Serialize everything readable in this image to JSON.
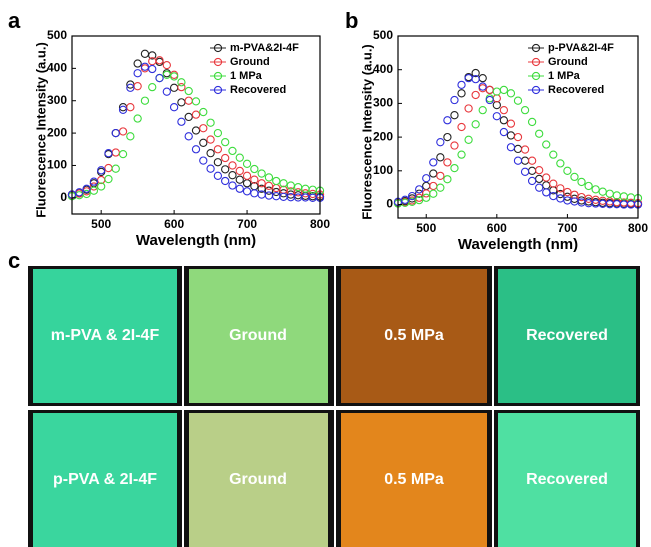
{
  "chart_data": [
    {
      "type": "scatter",
      "panel_label": "a",
      "xlabel": "Wavelength (nm)",
      "ylabel": "Fluorescence Intensity (a.u.)",
      "x": [
        460,
        470,
        480,
        490,
        500,
        510,
        520,
        530,
        540,
        550,
        560,
        570,
        580,
        590,
        600,
        610,
        620,
        630,
        640,
        650,
        660,
        670,
        680,
        690,
        700,
        710,
        720,
        730,
        740,
        750,
        760,
        770,
        780,
        790,
        800
      ],
      "xlim": [
        460,
        800
      ],
      "xticks": [
        500,
        600,
        700,
        800
      ],
      "ylim": [
        -50,
        500
      ],
      "yticks": [
        0,
        100,
        200,
        300,
        400,
        500
      ],
      "legend": "upper right",
      "series": [
        {
          "name": "m-PVA&2I-4F",
          "color": "#222222",
          "values": [
            10,
            16,
            25,
            45,
            80,
            135,
            200,
            280,
            350,
            415,
            445,
            440,
            420,
            385,
            340,
            295,
            250,
            208,
            170,
            138,
            110,
            88,
            70,
            56,
            45,
            36,
            28,
            22,
            18,
            14,
            10,
            8,
            6,
            5,
            4
          ]
        },
        {
          "name": "Ground",
          "color": "#e8383d",
          "values": [
            8,
            13,
            20,
            35,
            55,
            92,
            140,
            205,
            280,
            345,
            400,
            422,
            425,
            410,
            380,
            342,
            300,
            257,
            215,
            180,
            150,
            123,
            100,
            83,
            68,
            56,
            45,
            37,
            30,
            25,
            20,
            17,
            14,
            12,
            10
          ]
        },
        {
          "name": "1 MPa",
          "color": "#3ddc3d",
          "values": [
            5,
            8,
            12,
            22,
            35,
            58,
            90,
            135,
            190,
            245,
            300,
            342,
            370,
            380,
            375,
            357,
            330,
            298,
            265,
            232,
            200,
            172,
            145,
            124,
            105,
            89,
            75,
            63,
            52,
            45,
            38,
            33,
            28,
            25,
            22
          ]
        },
        {
          "name": "Recovered",
          "color": "#2f2fdc",
          "values": [
            10,
            17,
            28,
            50,
            85,
            138,
            200,
            272,
            340,
            385,
            405,
            398,
            370,
            328,
            280,
            235,
            190,
            150,
            115,
            90,
            68,
            52,
            38,
            28,
            20,
            14,
            10,
            7,
            5,
            3,
            2,
            1,
            1,
            0,
            0
          ]
        }
      ]
    },
    {
      "type": "scatter",
      "panel_label": "b",
      "xlabel": "Wavelength (nm)",
      "ylabel": "Fluorescence Intensity (a.u.)",
      "x": [
        460,
        470,
        480,
        490,
        500,
        510,
        520,
        530,
        540,
        550,
        560,
        570,
        580,
        590,
        600,
        610,
        620,
        630,
        640,
        650,
        660,
        670,
        680,
        690,
        700,
        710,
        720,
        730,
        740,
        750,
        760,
        770,
        780,
        790,
        800
      ],
      "xlim": [
        460,
        800
      ],
      "xticks": [
        500,
        600,
        700,
        800
      ],
      "ylim": [
        -40,
        500
      ],
      "yticks": [
        0,
        100,
        200,
        300,
        400,
        500
      ],
      "legend": "upper right",
      "series": [
        {
          "name": "p-PVA&2I-4F",
          "color": "#222222",
          "values": [
            5,
            10,
            18,
            32,
            55,
            92,
            140,
            200,
            265,
            330,
            378,
            390,
            375,
            340,
            295,
            250,
            205,
            165,
            130,
            100,
            76,
            57,
            42,
            31,
            23,
            17,
            12,
            9,
            7,
            5,
            4,
            3,
            2,
            2,
            1
          ]
        },
        {
          "name": "Ground",
          "color": "#e8383d",
          "values": [
            4,
            7,
            12,
            20,
            33,
            55,
            85,
            125,
            175,
            230,
            285,
            325,
            345,
            340,
            315,
            280,
            240,
            200,
            163,
            130,
            102,
            80,
            62,
            48,
            37,
            29,
            22,
            17,
            14,
            11,
            9,
            7,
            6,
            5,
            4
          ]
        },
        {
          "name": "1 MPa",
          "color": "#3ddc3d",
          "values": [
            3,
            5,
            8,
            13,
            20,
            32,
            50,
            75,
            108,
            148,
            192,
            238,
            280,
            315,
            335,
            340,
            330,
            308,
            280,
            245,
            210,
            178,
            148,
            122,
            100,
            82,
            67,
            55,
            45,
            38,
            32,
            27,
            24,
            21,
            19
          ]
        },
        {
          "name": "Recovered",
          "color": "#2f2fdc",
          "values": [
            8,
            14,
            25,
            45,
            78,
            125,
            185,
            250,
            310,
            355,
            375,
            372,
            350,
            310,
            262,
            215,
            170,
            130,
            97,
            70,
            50,
            36,
            25,
            18,
            12,
            9,
            6,
            4,
            3,
            2,
            1,
            1,
            0,
            0,
            0
          ]
        }
      ]
    }
  ],
  "photos": {
    "panel_label": "c",
    "rows": [
      [
        "m-PVA & 2I-4F",
        "Ground",
        "0.5 MPa",
        "Recovered"
      ],
      [
        "p-PVA & 2I-4F",
        "Ground",
        "0.5 MPa",
        "Recovered"
      ]
    ]
  }
}
